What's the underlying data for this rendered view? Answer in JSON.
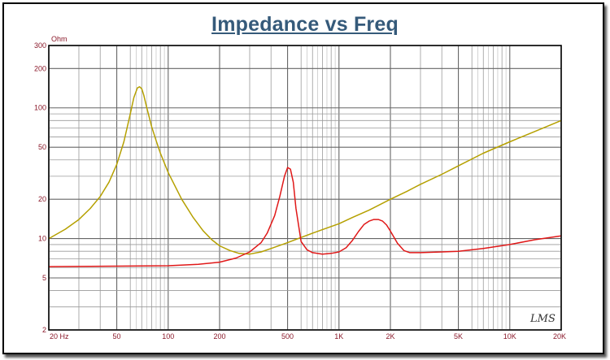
{
  "chart_data": {
    "type": "line",
    "title": "Impedance vs Freq",
    "y_unit": "Ohm",
    "x_scale": "log",
    "y_scale": "log",
    "xlim": [
      20,
      20000
    ],
    "ylim": [
      2,
      300
    ],
    "grid": true,
    "x_ticks": [
      {
        "value": 20,
        "label": "20  Hz"
      },
      {
        "value": 50,
        "label": "50"
      },
      {
        "value": 100,
        "label": "100"
      },
      {
        "value": 200,
        "label": "200"
      },
      {
        "value": 500,
        "label": "500"
      },
      {
        "value": 1000,
        "label": "1K"
      },
      {
        "value": 2000,
        "label": "2K"
      },
      {
        "value": 5000,
        "label": "5K"
      },
      {
        "value": 10000,
        "label": "10K"
      },
      {
        "value": 20000,
        "label": "20K"
      }
    ],
    "y_ticks": [
      {
        "value": 300,
        "label": "300"
      },
      {
        "value": 200,
        "label": "200"
      },
      {
        "value": 100,
        "label": "100"
      },
      {
        "value": 50,
        "label": "50"
      },
      {
        "value": 20,
        "label": "20"
      },
      {
        "value": 10,
        "label": "10"
      },
      {
        "value": 5,
        "label": "5"
      },
      {
        "value": 2,
        "label": "2"
      }
    ],
    "series": [
      {
        "color": "#b5a000",
        "x": [
          20,
          25,
          30,
          35,
          40,
          45,
          50,
          55,
          60,
          63,
          66,
          68,
          70,
          72,
          75,
          80,
          85,
          90,
          100,
          110,
          120,
          140,
          160,
          180,
          200,
          230,
          260,
          300,
          350,
          400,
          500,
          600,
          700,
          800,
          1000,
          1200,
          1500,
          2000,
          2500,
          3000,
          4000,
          5000,
          7000,
          10000,
          14000,
          20000
        ],
        "y": [
          10,
          11.8,
          14,
          17,
          21,
          27,
          37,
          55,
          90,
          120,
          142,
          145,
          140,
          125,
          100,
          72,
          56,
          45,
          32,
          25,
          20,
          14.5,
          11.5,
          9.8,
          8.8,
          8.1,
          7.7,
          7.6,
          7.9,
          8.4,
          9.3,
          10.2,
          11,
          11.7,
          13,
          14.5,
          16.5,
          20,
          23,
          26,
          31,
          36,
          45,
          55,
          66,
          80
        ]
      },
      {
        "color": "#e01818",
        "x": [
          20,
          50,
          100,
          150,
          200,
          250,
          300,
          350,
          380,
          420,
          450,
          480,
          500,
          520,
          540,
          560,
          600,
          650,
          700,
          800,
          900,
          1000,
          1100,
          1200,
          1300,
          1400,
          1500,
          1600,
          1700,
          1800,
          1900,
          2000,
          2200,
          2400,
          2600,
          3000,
          4000,
          5000,
          7000,
          10000,
          14000,
          20000
        ],
        "y": [
          6.1,
          6.15,
          6.2,
          6.35,
          6.6,
          7.1,
          7.9,
          9.3,
          11,
          15,
          21,
          30,
          35,
          34,
          27,
          17,
          9.5,
          8.2,
          7.8,
          7.6,
          7.7,
          7.9,
          8.5,
          9.7,
          11.3,
          12.8,
          13.6,
          14,
          14,
          13.6,
          12.7,
          11.4,
          9.2,
          8.1,
          7.8,
          7.8,
          7.9,
          8.0,
          8.4,
          9.0,
          9.8,
          10.5
        ]
      }
    ],
    "annotation": "LMS"
  }
}
